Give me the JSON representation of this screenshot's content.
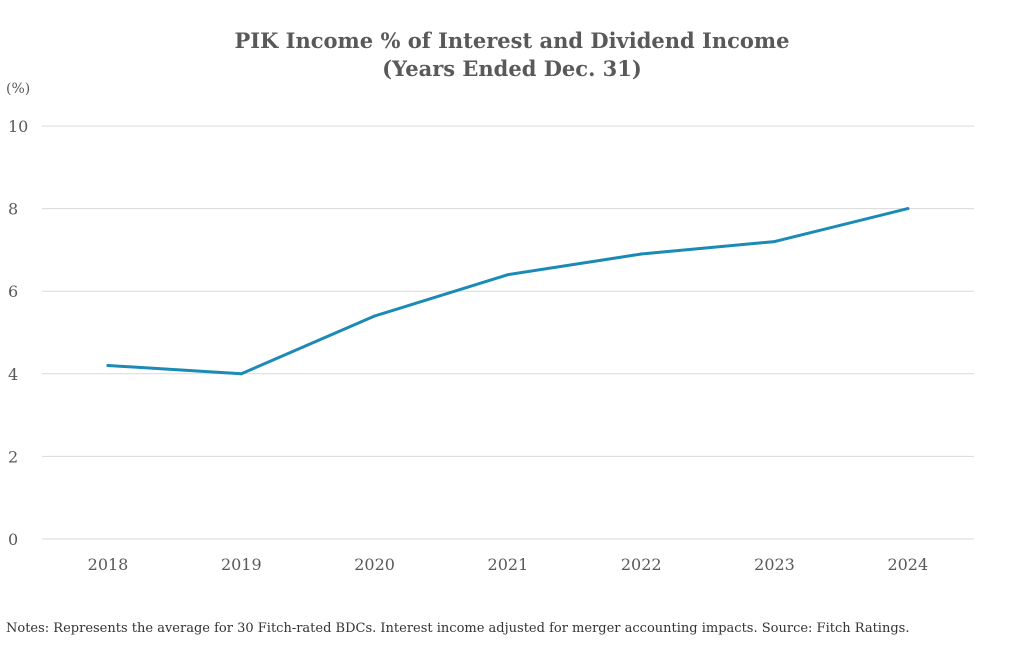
{
  "chart_data": {
    "type": "line",
    "title": "PIK Income % of Interest and Dividend Income",
    "subtitle": "(Years Ended Dec. 31)",
    "ylabel": "(%)",
    "xlabel": "",
    "x": [
      "2018",
      "2019",
      "2020",
      "2021",
      "2022",
      "2023",
      "2024"
    ],
    "series": [
      {
        "values": [
          4.2,
          4.0,
          5.4,
          6.4,
          6.9,
          7.2,
          8.0
        ],
        "color": "#1b8ab5"
      }
    ],
    "ylim": [
      0,
      10
    ],
    "yticks": [
      "0",
      "2",
      "4",
      "6",
      "8",
      "10"
    ],
    "grid": true,
    "gridColor": "#d9d9d9",
    "legend": "none"
  },
  "notes": "Notes: Represents the average for 30 Fitch-rated BDCs. Interest income adjusted for merger accounting impacts. Source: Fitch Ratings."
}
